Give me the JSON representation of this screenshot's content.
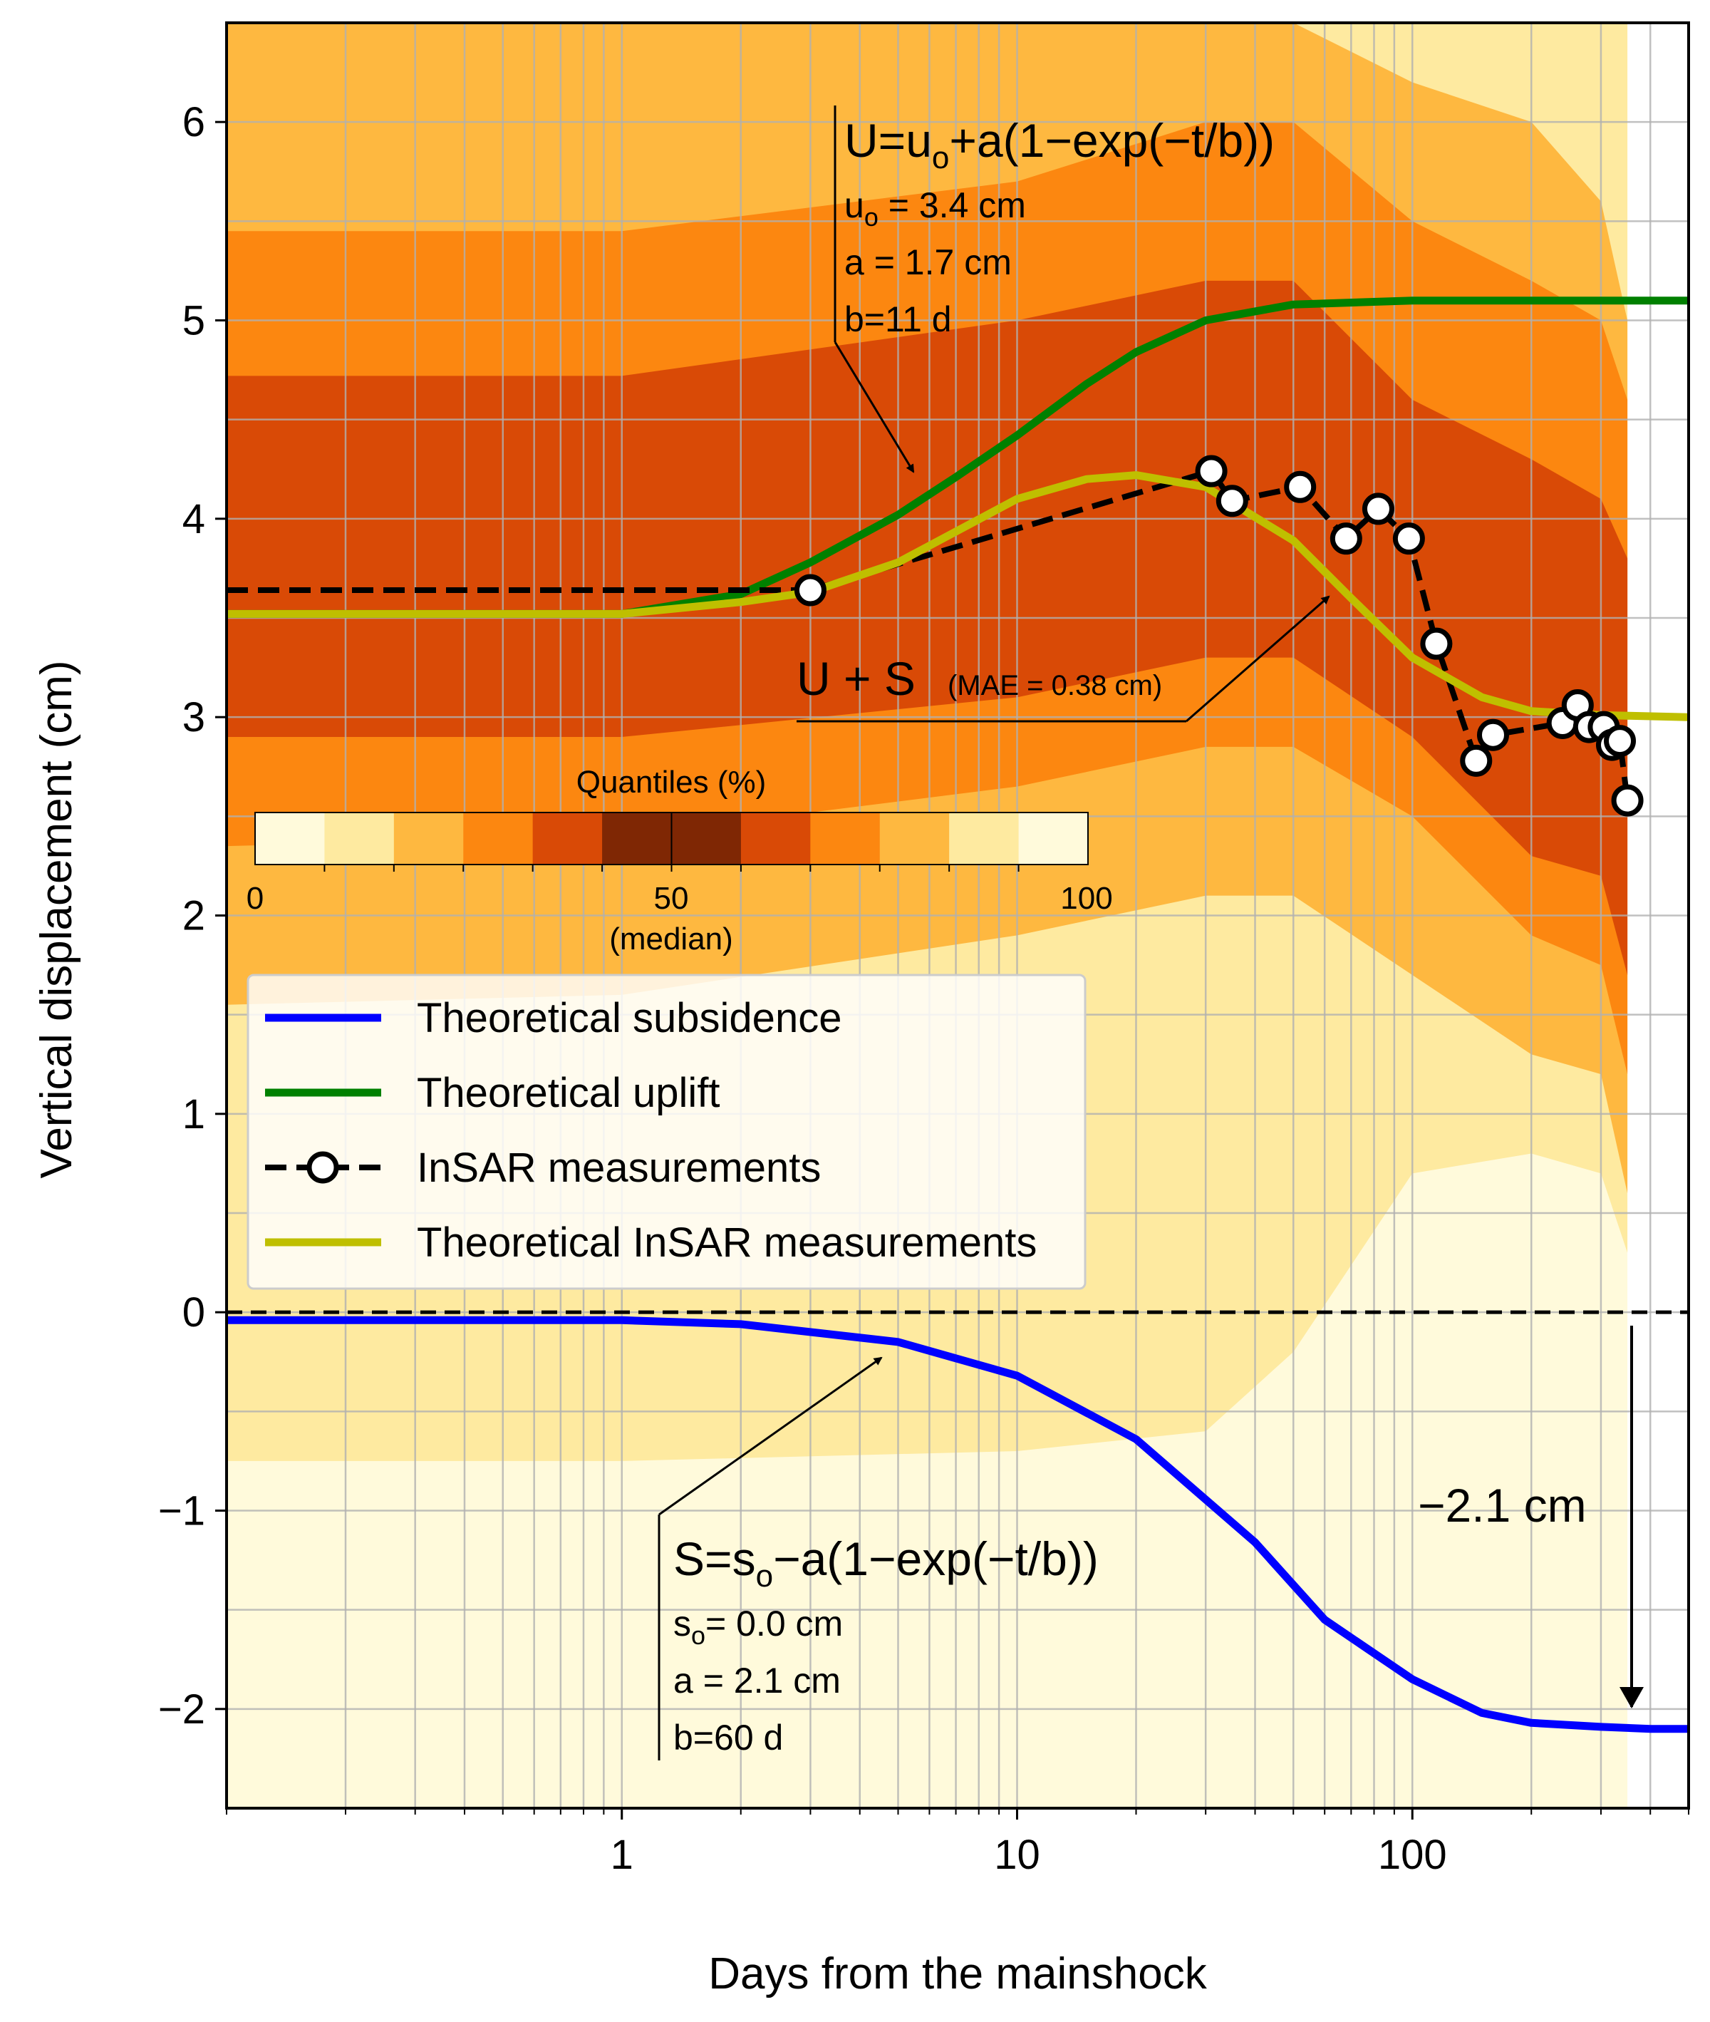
{
  "chart_data": {
    "type": "line",
    "xscale": "log",
    "xlabel": "Days from the mainshock",
    "ylabel": "Vertical displacement (cm)",
    "xlim": [
      0.1,
      500
    ],
    "ylim": [
      -2.5,
      6.5
    ],
    "xticks": [
      {
        "value": 1,
        "label": "1"
      },
      {
        "value": 10,
        "label": "10"
      },
      {
        "value": 100,
        "label": "100"
      }
    ],
    "yticks": [
      {
        "value": 6,
        "label": "6"
      },
      {
        "value": 5,
        "label": "5"
      },
      {
        "value": 4,
        "label": "4"
      },
      {
        "value": 3,
        "label": "3"
      },
      {
        "value": 2,
        "label": "2"
      },
      {
        "value": 1,
        "label": "1"
      },
      {
        "value": 0,
        "label": "0"
      },
      {
        "value": -1,
        "label": "−1"
      },
      {
        "value": -2,
        "label": "−2"
      }
    ],
    "grid": true,
    "quantile_bands": {
      "x": [
        0.1,
        1,
        10,
        30,
        50,
        100,
        200,
        300,
        350
      ],
      "bands": [
        {
          "range": "0-10",
          "color": "#fffadb",
          "lower": [
            -2.5,
            -2.5,
            -2.5,
            -2.5,
            -2.5,
            -2.5,
            -2.5,
            -2.5,
            -2.5
          ],
          "upper": [
            6.5,
            6.5,
            6.5,
            6.5,
            6.5,
            6.5,
            6.5,
            6.5,
            6.5
          ]
        },
        {
          "range": "10-20",
          "color": "#feeaa0",
          "lower": [
            -0.75,
            -0.75,
            -0.7,
            -0.6,
            -0.2,
            0.7,
            0.8,
            0.7,
            0.3
          ],
          "upper": [
            6.5,
            6.5,
            6.5,
            6.5,
            6.5,
            6.5,
            6.5,
            6.5,
            6.5
          ]
        },
        {
          "range": "20-30",
          "color": "#feb840",
          "lower": [
            1.55,
            1.6,
            1.9,
            2.1,
            2.1,
            1.7,
            1.3,
            1.2,
            0.6
          ],
          "upper": [
            6.5,
            6.5,
            6.5,
            6.5,
            6.5,
            6.2,
            6.0,
            5.6,
            5.0
          ]
        },
        {
          "range": "30-40",
          "color": "#fc8710",
          "lower": [
            2.35,
            2.4,
            2.65,
            2.85,
            2.85,
            2.5,
            1.9,
            1.75,
            1.2
          ],
          "upper": [
            5.45,
            5.45,
            5.7,
            6.0,
            6.0,
            5.5,
            5.2,
            5.0,
            4.6
          ]
        },
        {
          "range": "40-50",
          "color": "#d94a06",
          "lower": [
            2.9,
            2.9,
            3.1,
            3.3,
            3.3,
            2.9,
            2.3,
            2.2,
            1.7
          ],
          "upper": [
            4.72,
            4.72,
            5.0,
            5.2,
            5.2,
            4.6,
            4.3,
            4.1,
            3.8
          ]
        }
      ]
    },
    "series": [
      {
        "name": "Theoretical subsidence",
        "color": "#0000ff",
        "formula": "S=s0-a(1-exp(-t/b))",
        "s0": 0.0,
        "a": 2.1,
        "b": 60,
        "x": [
          0.1,
          0.5,
          1,
          2,
          5,
          10,
          20,
          40,
          60,
          100,
          150,
          200,
          300,
          400,
          500
        ],
        "y": [
          -0.04,
          -0.04,
          -0.04,
          -0.06,
          -0.15,
          -0.32,
          -0.64,
          -1.16,
          -1.55,
          -1.85,
          -2.02,
          -2.07,
          -2.09,
          -2.1,
          -2.1
        ]
      },
      {
        "name": "Theoretical uplift",
        "color": "#008000",
        "formula": "U=u0+a(1-exp(-t/b))",
        "u0": 3.4,
        "a": 1.7,
        "b": 11,
        "x": [
          0.1,
          0.5,
          1,
          2,
          3,
          5,
          7,
          10,
          15,
          20,
          30,
          50,
          100,
          200,
          500
        ],
        "y": [
          3.52,
          3.52,
          3.52,
          3.62,
          3.78,
          4.02,
          4.21,
          4.42,
          4.68,
          4.84,
          5.0,
          5.08,
          5.1,
          5.1,
          5.1
        ]
      },
      {
        "name": "InSAR measurements",
        "color": "#000000",
        "dashed": true,
        "markers": true,
        "x": [
          0.1,
          1,
          3,
          31,
          35,
          52,
          68,
          82,
          98,
          115,
          145,
          160,
          240,
          262,
          280,
          305,
          320,
          335,
          350
        ],
        "y": [
          3.64,
          3.64,
          3.64,
          4.24,
          4.09,
          4.16,
          3.9,
          4.05,
          3.9,
          3.37,
          2.78,
          2.91,
          2.97,
          3.06,
          2.95,
          2.95,
          2.86,
          2.88,
          2.58
        ]
      },
      {
        "name": "Theoretical InSAR measurements",
        "color": "#bfbf00",
        "x": [
          0.1,
          0.5,
          1,
          2,
          3,
          5,
          10,
          15,
          20,
          30,
          50,
          70,
          100,
          150,
          200,
          300,
          500
        ],
        "y": [
          3.52,
          3.52,
          3.52,
          3.58,
          3.63,
          3.78,
          4.1,
          4.2,
          4.22,
          4.16,
          3.89,
          3.6,
          3.3,
          3.1,
          3.03,
          3.01,
          3.0
        ]
      }
    ],
    "zero_line": {
      "y": 0,
      "style": "dashed"
    },
    "annotations": {
      "uplift_formula": "U=u",
      "uplift_formula_sub": "o",
      "uplift_formula_rest": "+a(1−exp(−t/b))",
      "uplift_u0_label": "u",
      "uplift_u0_sub": "o",
      "uplift_u0_value": " = 3.4 cm",
      "uplift_a": "a = 1.7 cm",
      "uplift_b": "b=11 d",
      "sum_label": "U + S",
      "sum_mae": "(MAE = 0.38 cm)",
      "subsidence_formula": "S=s",
      "subsidence_formula_sub": "o",
      "subsidence_formula_rest": "−a(1−exp(−t/b))",
      "subsidence_s0_label": "s",
      "subsidence_s0_sub": "o",
      "subsidence_s0_value": "= 0.0 cm",
      "subsidence_a": "a = 2.1 cm",
      "subsidence_b": "b=60 d",
      "total_subsidence": "−2.1 cm"
    },
    "colorbar": {
      "title": "Quantiles (%)",
      "ticks": [
        {
          "value": 0,
          "label": "0"
        },
        {
          "value": 50,
          "label": "50"
        },
        {
          "value": 100,
          "label": "100"
        }
      ],
      "median_label": "(median)",
      "colors": [
        "#fffadb",
        "#feeaa0",
        "#feb840",
        "#fc8710",
        "#d94a06",
        "#7f2704",
        "#7f2704",
        "#d94a06",
        "#fc8710",
        "#feb840",
        "#feeaa0",
        "#fffadb"
      ]
    },
    "legend": {
      "position": "center-left",
      "entries": [
        {
          "label": "Theoretical subsidence",
          "color": "#0000ff"
        },
        {
          "label": "Theoretical uplift",
          "color": "#008000"
        },
        {
          "label": "InSAR measurements",
          "color": "#000000"
        },
        {
          "label": "Theoretical InSAR measurements",
          "color": "#bfbf00"
        }
      ]
    }
  }
}
